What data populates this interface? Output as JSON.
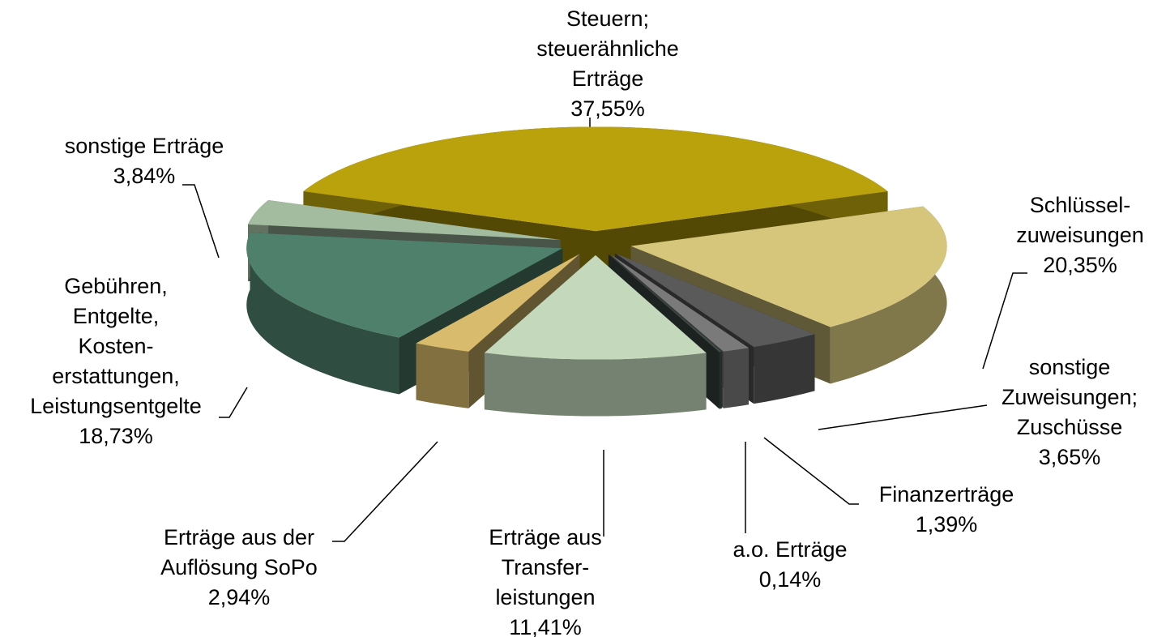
{
  "chart_data": {
    "type": "pie3d",
    "categories": [
      "Steuern;\nsteuerähnliche\nErträge",
      "Schlüssel-\nzuweisungen",
      "sonstige\nZuweisungen;\nZuschüsse",
      "Finanzerträge",
      "a.o. Erträge",
      "Erträge aus\nTransfer-\nleistungen",
      "Erträge aus der\nAuflösung SoPo",
      "Gebühren,\nEntgelte,\nKosten-\nerstattungen,\nLeistungsentgelte",
      "sonstige Erträge"
    ],
    "values": [
      37.55,
      20.35,
      3.65,
      1.39,
      0.14,
      11.41,
      2.94,
      18.73,
      3.84
    ],
    "value_labels": [
      "37,55%",
      "20,35%",
      "3,65%",
      "1,39%",
      "0,14%",
      "11,41%",
      "2,94%",
      "18,73%",
      "3,84%"
    ],
    "colors": [
      "#b9a20c",
      "#d6c67c",
      "#5a5a5a",
      "#7a7a7a",
      "#3e4b46",
      "#c4d8bc",
      "#d8bb6c",
      "#4f806b",
      "#a3bca0"
    ]
  }
}
